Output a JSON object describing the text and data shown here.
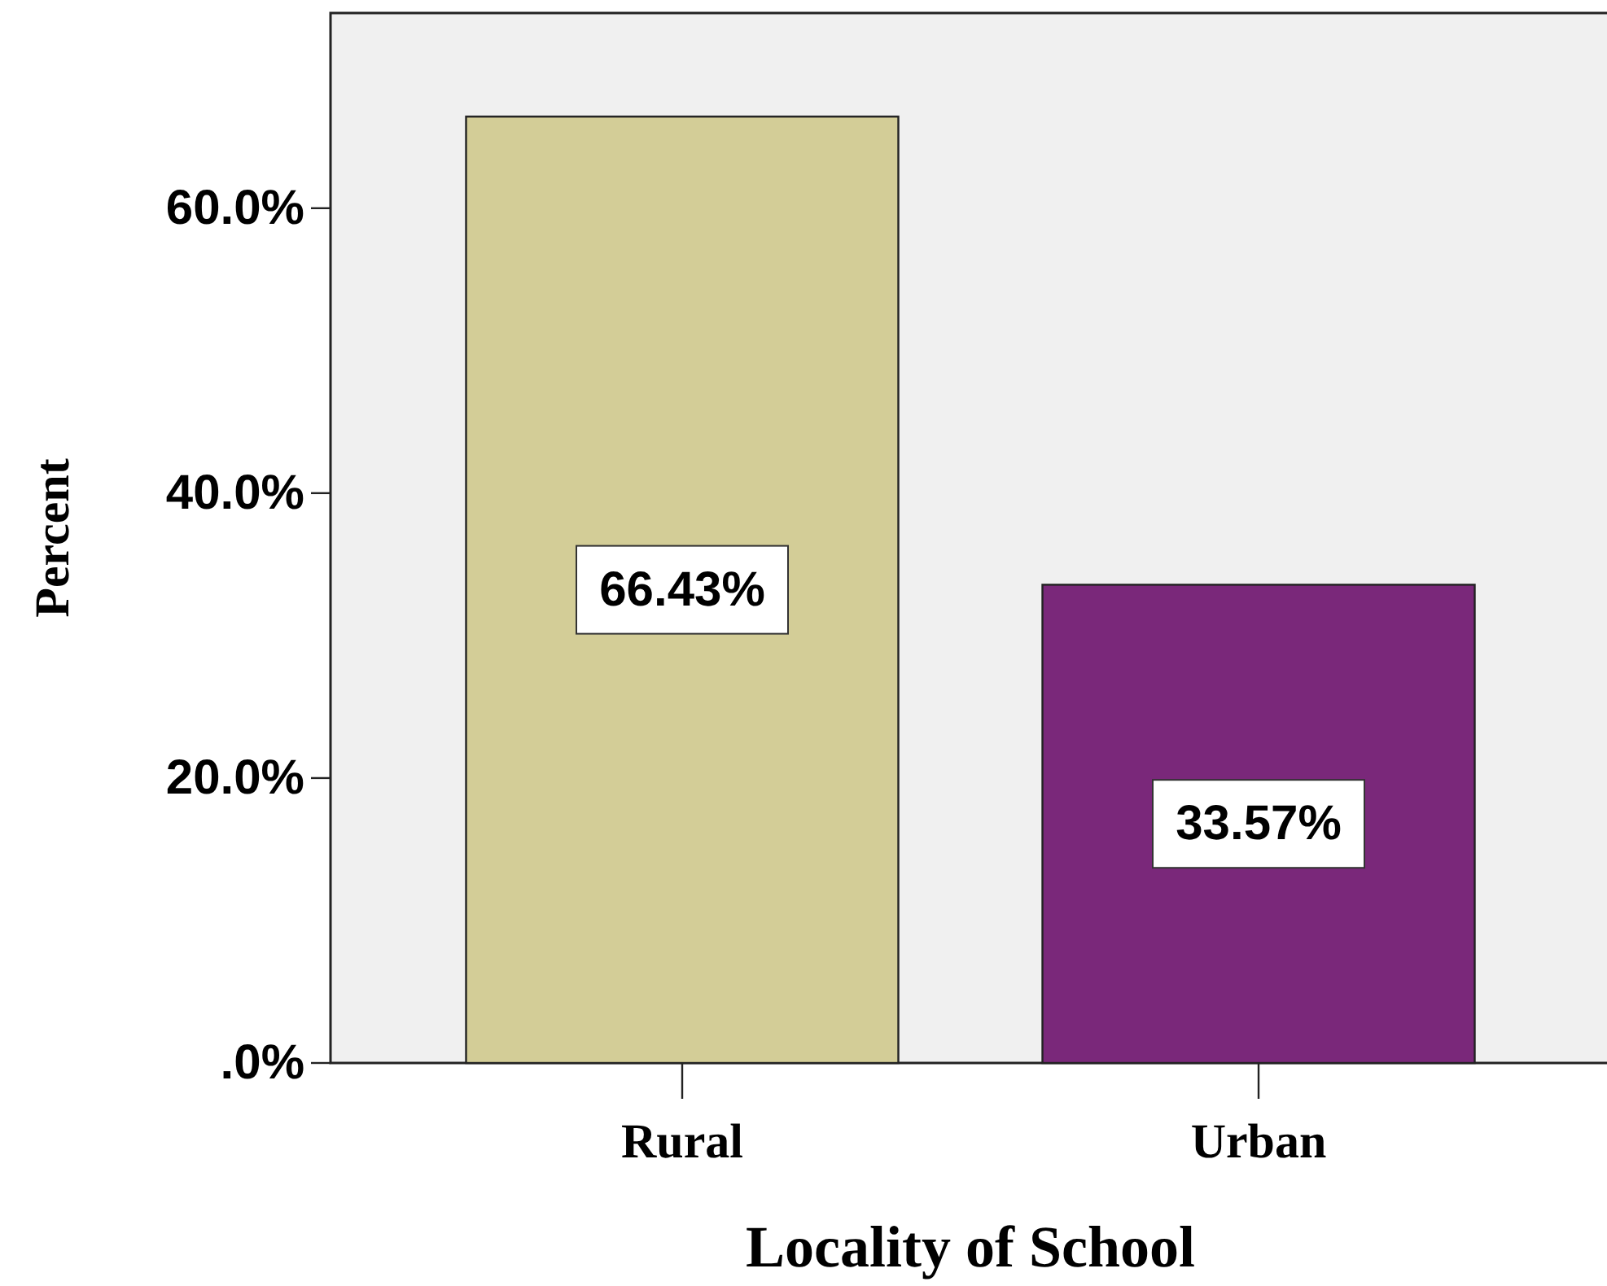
{
  "chart_data": {
    "type": "bar",
    "xlabel": "Locality of School",
    "ylabel": "Percent",
    "categories": [
      "Rural",
      "Urban"
    ],
    "values": [
      66.43,
      33.57
    ],
    "colors": [
      "#d3cd97",
      "#7a287a"
    ],
    "value_labels": [
      "66.43%",
      "33.57%"
    ],
    "ylim": [
      0,
      73.7
    ],
    "yticks": [
      {
        "value": 0,
        "label": ".0%"
      },
      {
        "value": 20,
        "label": "20.0%"
      },
      {
        "value": 40,
        "label": "40.0%"
      },
      {
        "value": 60,
        "label": "60.0%"
      }
    ],
    "grid": false
  }
}
